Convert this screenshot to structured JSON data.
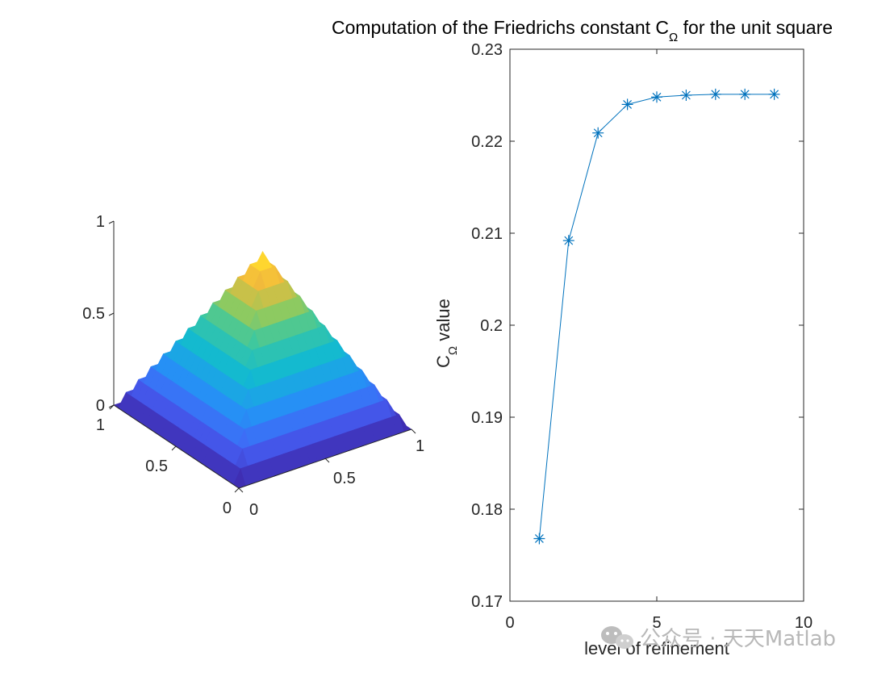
{
  "chart_data": [
    {
      "type": "surface",
      "z_ticks": [
        "0",
        "0.5",
        "1"
      ],
      "x_ticks": [
        "0",
        "0.5",
        "1"
      ],
      "y_ticks": [
        "0",
        "0.5",
        "1"
      ],
      "colormap": "parula"
    },
    {
      "type": "line",
      "title": {
        "main": "Computation of the Friedrichs constant C",
        "sub": "Ω",
        "tail": " for the unit square"
      },
      "xlabel": "level of refinement",
      "ylabel": {
        "main": "C",
        "sub": "Ω",
        "tail": " value"
      },
      "xlim": [
        0,
        10
      ],
      "ylim": [
        0.17,
        0.23
      ],
      "x_ticks": [
        "0",
        "5",
        "10"
      ],
      "y_ticks": [
        "0.17",
        "0.18",
        "0.19",
        "0.2",
        "0.21",
        "0.22",
        "0.23"
      ],
      "marker": "asterisk",
      "color": "#0072BD",
      "series": [
        {
          "x": [
            1,
            2,
            3,
            4,
            5,
            6,
            7,
            8,
            9
          ],
          "values": [
            0.1768,
            0.2092,
            0.2209,
            0.224,
            0.2248,
            0.225,
            0.2251,
            0.2251,
            0.2251
          ]
        }
      ]
    }
  ],
  "watermark": {
    "icon": "wechat-icon",
    "text": "公众号 · 天天Matlab"
  }
}
